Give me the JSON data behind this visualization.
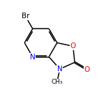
{
  "background_color": "#ffffff",
  "figsize": [
    1.52,
    1.52
  ],
  "dpi": 100,
  "bond_color": "#000000",
  "atom_colors": {
    "Br": "#000000",
    "O": "#ff0000",
    "N": "#0000ff",
    "C": "#000000"
  },
  "font_size": 7.5,
  "bond_width": 1.1,
  "xlim": [
    0,
    10
  ],
  "ylim": [
    0,
    10
  ],
  "bl": 1.55,
  "dbo": 0.13
}
